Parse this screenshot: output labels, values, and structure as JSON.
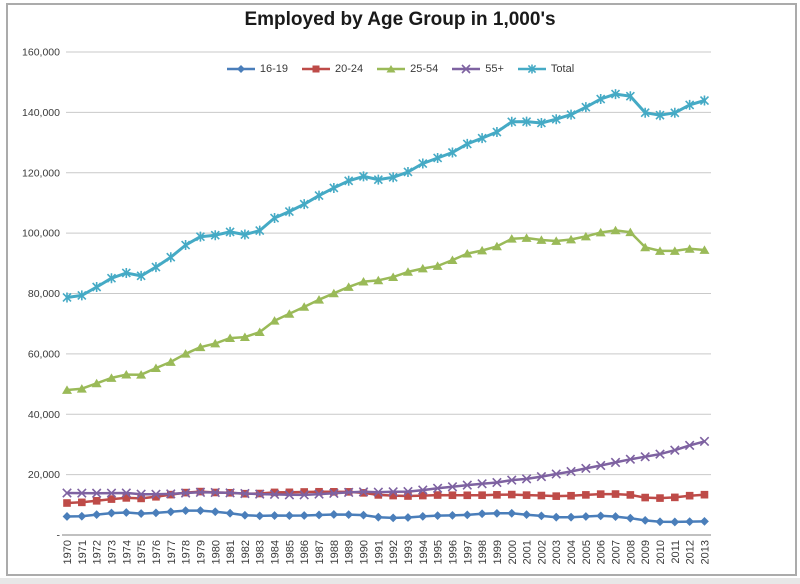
{
  "window": {
    "frame_border_color": "#ababab",
    "bottom_strip_color": "#e7e7e7"
  },
  "chart_data": {
    "type": "line",
    "title": "Employed by Age Group in 1,000's",
    "xlabel": "",
    "ylabel": "",
    "ylim": [
      0,
      160000
    ],
    "grid": true,
    "legend_position": "top-center",
    "gridline_color": "#c9c9c9",
    "axis_line_color": "#9b9b9b",
    "tick_label_color": "#3a3a3a",
    "y_ticks": [
      {
        "value": 0,
        "label": "-"
      },
      {
        "value": 20000,
        "label": "20,000"
      },
      {
        "value": 40000,
        "label": "40,000"
      },
      {
        "value": 60000,
        "label": "60,000"
      },
      {
        "value": 80000,
        "label": "80,000"
      },
      {
        "value": 100000,
        "label": "100,000"
      },
      {
        "value": 120000,
        "label": "120,000"
      },
      {
        "value": 140000,
        "label": "140,000"
      },
      {
        "value": 160000,
        "label": "160,000"
      }
    ],
    "categories": [
      "1970",
      "1971",
      "1972",
      "1973",
      "1974",
      "1975",
      "1976",
      "1977",
      "1978",
      "1979",
      "1980",
      "1981",
      "1982",
      "1983",
      "1984",
      "1985",
      "1986",
      "1987",
      "1988",
      "1989",
      "1990",
      "1991",
      "1992",
      "1993",
      "1994",
      "1995",
      "1996",
      "1997",
      "1998",
      "1999",
      "2000",
      "2001",
      "2002",
      "2003",
      "2004",
      "2005",
      "2006",
      "2007",
      "2008",
      "2009",
      "2010",
      "2011",
      "2012",
      "2013"
    ],
    "series": [
      {
        "name": "16-19",
        "color": "#4A7EBA",
        "marker": "diamond",
        "values": [
          6144,
          6208,
          6746,
          7271,
          7448,
          7104,
          7336,
          7688,
          8070,
          8083,
          7710,
          7225,
          6549,
          6342,
          6444,
          6434,
          6472,
          6640,
          6805,
          6759,
          6581,
          5906,
          5669,
          5805,
          6161,
          6419,
          6500,
          6661,
          7051,
          7172,
          7189,
          6740,
          6332,
          5907,
          5907,
          6124,
          6347,
          6106,
          5573,
          4837,
          4378,
          4327,
          4426,
          4504
        ]
      },
      {
        "name": "20-24",
        "color": "#BE4B48",
        "marker": "square",
        "values": [
          10597,
          10817,
          11323,
          11893,
          12291,
          12123,
          12661,
          13376,
          14047,
          14381,
          14087,
          13989,
          13680,
          13734,
          14115,
          14140,
          14255,
          14322,
          14306,
          14293,
          13959,
          13277,
          13066,
          12914,
          13066,
          13233,
          13174,
          13153,
          13193,
          13305,
          13395,
          13208,
          13078,
          12872,
          13011,
          13287,
          13534,
          13565,
          13281,
          12403,
          12228,
          12464,
          13027,
          13353
        ]
      },
      {
        "name": "25-54",
        "color": "#9ABA58",
        "marker": "triangle",
        "values": [
          48024,
          48458,
          50237,
          52033,
          53141,
          53093,
          55273,
          57330,
          60034,
          62220,
          63440,
          65232,
          65566,
          67212,
          70985,
          73273,
          75572,
          77945,
          80057,
          82177,
          83956,
          84344,
          85451,
          87152,
          88290,
          89100,
          91067,
          93218,
          94253,
          95619,
          98132,
          98401,
          97733,
          97400,
          97900,
          98900,
          100200,
          100900,
          100300,
          95300,
          94100,
          94100,
          94800,
          94400
        ]
      },
      {
        "name": "55+",
        "color": "#7E62A1",
        "marker": "x",
        "values": [
          13913,
          13884,
          13847,
          13867,
          13914,
          13526,
          13482,
          13623,
          13897,
          14140,
          14066,
          13951,
          13731,
          13546,
          13461,
          13303,
          13298,
          13533,
          13800,
          14113,
          14297,
          14191,
          14306,
          14388,
          14890,
          15488,
          15967,
          16526,
          16966,
          17392,
          18175,
          18584,
          19342,
          20198,
          21043,
          22064,
          23024,
          24038,
          25085,
          25936,
          26806,
          28095,
          29696,
          31010
        ]
      },
      {
        "name": "Total",
        "color": "#45AAC5",
        "marker": "asterisk",
        "values": [
          78678,
          79367,
          82153,
          85064,
          86794,
          85846,
          88752,
          92017,
          96048,
          98824,
          99303,
          100397,
          99526,
          100834,
          105005,
          107150,
          109597,
          112440,
          114968,
          117342,
          118793,
          117718,
          118492,
          120259,
          123060,
          124900,
          126708,
          129558,
          131463,
          133488,
          136891,
          136933,
          136485,
          137736,
          139252,
          141730,
          144427,
          146047,
          145362,
          139877,
          139064,
          139869,
          142469,
          143929
        ]
      }
    ]
  }
}
